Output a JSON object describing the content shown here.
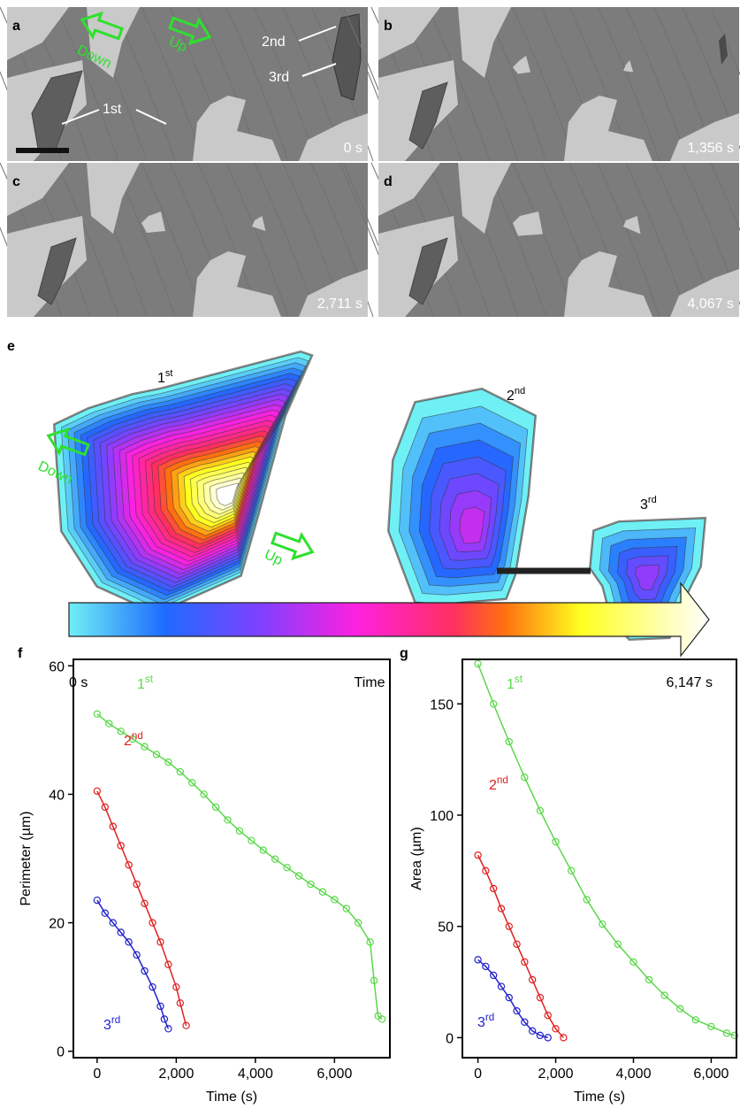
{
  "panels": [
    {
      "letter": "a",
      "time": "0 s"
    },
    {
      "letter": "b",
      "time": "1,356 s"
    },
    {
      "letter": "c",
      "time": "2,711 s"
    },
    {
      "letter": "d",
      "time": "4,067 s"
    }
  ],
  "panel_a_labels": {
    "down": "Down",
    "up": "Up",
    "second": "2nd",
    "third": "3rd",
    "first": "1st"
  },
  "panel_e": {
    "letter": "e",
    "grains": [
      {
        "base": "1",
        "sup": "st"
      },
      {
        "base": "2",
        "sup": "nd"
      },
      {
        "base": "3",
        "sup": "rd"
      }
    ],
    "down": "Down",
    "up": "Up",
    "colorbar": {
      "start": "0 s",
      "label": "Time",
      "end": "6,147 s"
    }
  },
  "chart_data": [
    {
      "type": "scatter",
      "panel": "f",
      "x_label": "Time (s)",
      "y_label": "Perimeter (µm)",
      "xlim": [
        -600,
        7400
      ],
      "ylim": [
        -1,
        61
      ],
      "xticks": [
        0,
        {
          "value": 2000,
          "label": "2,000"
        },
        {
          "value": 4000,
          "label": "4,000"
        },
        {
          "value": 6000,
          "label": "6,000"
        }
      ],
      "yticks": [
        0,
        20,
        40,
        60
      ],
      "series": [
        {
          "label": {
            "base": "1",
            "sup": "st"
          },
          "color": "#5bd84a",
          "x": [
            0,
            300,
            600,
            900,
            1200,
            1500,
            1800,
            2100,
            2400,
            2700,
            3000,
            3300,
            3600,
            3900,
            4200,
            4500,
            4800,
            5100,
            5400,
            5700,
            6000,
            6300,
            6600,
            6900,
            7000,
            7100,
            7200
          ],
          "values": [
            52.5,
            51,
            49.8,
            48.6,
            47.4,
            46.2,
            45,
            43.5,
            41.8,
            40,
            38,
            36,
            34.3,
            32.8,
            31.3,
            29.9,
            28.6,
            27.3,
            26,
            24.8,
            23.6,
            22.2,
            20,
            17,
            11,
            5.5,
            5
          ]
        },
        {
          "label": {
            "base": "2",
            "sup": "nd"
          },
          "color": "#e02020",
          "x": [
            0,
            200,
            400,
            600,
            800,
            1000,
            1200,
            1400,
            1600,
            1800,
            2000,
            2100,
            2250
          ],
          "values": [
            40.5,
            38,
            35,
            32,
            29,
            26,
            23,
            20,
            17,
            13.5,
            10,
            7.5,
            4
          ]
        },
        {
          "label": {
            "base": "3",
            "sup": "rd"
          },
          "color": "#2222cc",
          "x": [
            0,
            200,
            400,
            600,
            800,
            1000,
            1200,
            1400,
            1600,
            1700,
            1800
          ],
          "values": [
            23.5,
            21.5,
            20,
            18.5,
            17,
            15,
            12.5,
            10,
            7,
            5,
            3.5
          ]
        }
      ]
    },
    {
      "type": "scatter",
      "panel": "g",
      "x_label": "Time (s)",
      "y_label": "Area (µm)",
      "xlim": [
        -400,
        6650
      ],
      "ylim": [
        -9,
        170
      ],
      "xticks": [
        0,
        {
          "value": 2000,
          "label": "2,000"
        },
        {
          "value": 4000,
          "label": "4,000"
        },
        {
          "value": 6000,
          "label": "6,000"
        }
      ],
      "yticks": [
        0,
        50,
        100,
        150
      ],
      "series": [
        {
          "label": {
            "base": "1",
            "sup": "st"
          },
          "color": "#5bd84a",
          "x": [
            0,
            400,
            800,
            1200,
            1600,
            2000,
            2400,
            2800,
            3200,
            3600,
            4000,
            4400,
            4800,
            5200,
            5600,
            6000,
            6400,
            6600
          ],
          "values": [
            168,
            150,
            133,
            117,
            102,
            88,
            75,
            62,
            51,
            42,
            34,
            26,
            19,
            13,
            8,
            5,
            2,
            1
          ]
        },
        {
          "label": {
            "base": "2",
            "sup": "nd"
          },
          "color": "#e02020",
          "x": [
            0,
            200,
            400,
            600,
            800,
            1000,
            1200,
            1400,
            1600,
            1800,
            2000,
            2200
          ],
          "values": [
            82,
            75,
            67,
            58,
            50,
            42,
            34,
            26,
            18,
            10,
            4,
            0
          ]
        },
        {
          "label": {
            "base": "3",
            "sup": "rd"
          },
          "color": "#2222cc",
          "x": [
            0,
            200,
            400,
            600,
            800,
            1000,
            1200,
            1400,
            1600,
            1800
          ],
          "values": [
            35,
            32,
            28,
            23,
            18,
            12,
            7,
            3,
            1,
            0
          ]
        }
      ]
    }
  ]
}
